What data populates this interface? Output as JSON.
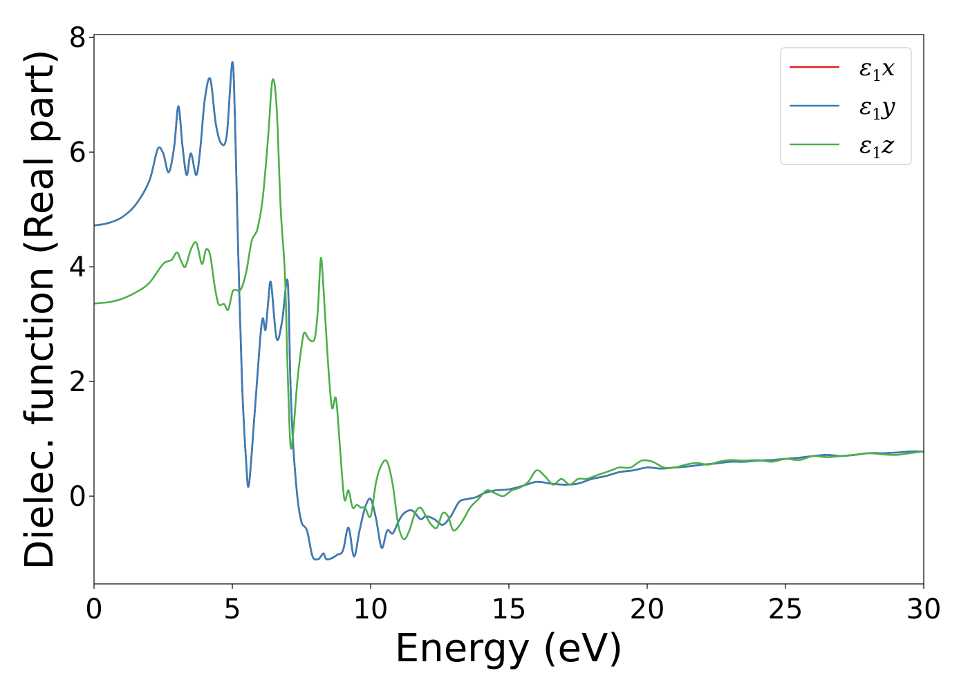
{
  "chart_data": {
    "type": "line",
    "xlabel": "Energy (eV)",
    "ylabel": "Dielec. function (Real part)",
    "xlim": [
      0,
      30
    ],
    "ylim": [
      -1.53,
      8.05
    ],
    "xticks": [
      "0",
      "5",
      "10",
      "15",
      "20",
      "25",
      "30"
    ],
    "yticks": [
      "0",
      "2",
      "4",
      "6",
      "8"
    ],
    "grid": false,
    "legend_position": "top-right",
    "series": [
      {
        "name": "ε₁x",
        "legend": {
          "symbol": "ε",
          "sub": "1",
          "axis": "x"
        },
        "color": "#e41a1c",
        "x": [
          0,
          0.5,
          1,
          1.5,
          2,
          2.3,
          2.5,
          2.7,
          2.9,
          3.05,
          3.2,
          3.35,
          3.5,
          3.7,
          3.85,
          4.0,
          4.2,
          4.4,
          4.6,
          4.8,
          5.0,
          5.1,
          5.2,
          5.35,
          5.5,
          5.6,
          5.8,
          6.0,
          6.1,
          6.2,
          6.3,
          6.4,
          6.6,
          6.8,
          7.0,
          7.1,
          7.2,
          7.35,
          7.5,
          7.7,
          7.9,
          8.1,
          8.2,
          8.3,
          8.4,
          8.6,
          8.8,
          9.0,
          9.2,
          9.4,
          9.6,
          9.8,
          10.0,
          10.2,
          10.4,
          10.6,
          10.8,
          11.0,
          11.2,
          11.5,
          11.8,
          12.0,
          12.3,
          12.6,
          12.9,
          13.2,
          13.5,
          13.8,
          14.1,
          14.5,
          15.0,
          15.5,
          16.0,
          16.5,
          17.0,
          17.5,
          18.0,
          18.5,
          19.0,
          19.5,
          20.0,
          20.5,
          21.0,
          21.5,
          22.0,
          22.5,
          23.0,
          23.5,
          24.0,
          24.5,
          25.0,
          25.5,
          26.0,
          26.5,
          27.0,
          27.5,
          28.0,
          28.5,
          29.0,
          29.5,
          30.0
        ],
        "y": [
          4.72,
          4.76,
          4.86,
          5.08,
          5.5,
          6.05,
          5.98,
          5.65,
          6.1,
          6.8,
          6.1,
          5.6,
          5.98,
          5.6,
          6.1,
          6.9,
          7.28,
          6.5,
          6.15,
          6.3,
          7.57,
          6.5,
          4.5,
          2.0,
          0.6,
          0.2,
          1.4,
          2.7,
          3.1,
          2.9,
          3.4,
          3.72,
          2.75,
          3.05,
          3.75,
          2.0,
          0.9,
          0.0,
          -0.45,
          -0.6,
          -1.05,
          -1.1,
          -1.05,
          -1.0,
          -1.1,
          -1.08,
          -1.02,
          -0.95,
          -0.55,
          -1.05,
          -0.6,
          -0.2,
          -0.05,
          -0.4,
          -0.9,
          -0.6,
          -0.65,
          -0.45,
          -0.3,
          -0.25,
          -0.4,
          -0.35,
          -0.4,
          -0.5,
          -0.35,
          -0.1,
          -0.05,
          -0.02,
          0.05,
          0.1,
          0.12,
          0.18,
          0.25,
          0.22,
          0.2,
          0.22,
          0.3,
          0.35,
          0.42,
          0.45,
          0.5,
          0.48,
          0.5,
          0.52,
          0.55,
          0.57,
          0.6,
          0.6,
          0.62,
          0.63,
          0.65,
          0.67,
          0.7,
          0.72,
          0.7,
          0.72,
          0.75,
          0.75,
          0.76,
          0.78,
          0.78
        ]
      },
      {
        "name": "ε₁y",
        "legend": {
          "symbol": "ε",
          "sub": "1",
          "axis": "y"
        },
        "color": "#377eb8",
        "x": [
          0,
          0.5,
          1,
          1.5,
          2,
          2.3,
          2.5,
          2.7,
          2.9,
          3.05,
          3.2,
          3.35,
          3.5,
          3.7,
          3.85,
          4.0,
          4.2,
          4.4,
          4.6,
          4.8,
          5.0,
          5.1,
          5.2,
          5.35,
          5.5,
          5.6,
          5.8,
          6.0,
          6.1,
          6.2,
          6.3,
          6.4,
          6.6,
          6.8,
          7.0,
          7.1,
          7.2,
          7.35,
          7.5,
          7.7,
          7.9,
          8.1,
          8.2,
          8.3,
          8.4,
          8.6,
          8.8,
          9.0,
          9.2,
          9.4,
          9.6,
          9.8,
          10.0,
          10.2,
          10.4,
          10.6,
          10.8,
          11.0,
          11.2,
          11.5,
          11.8,
          12.0,
          12.3,
          12.6,
          12.9,
          13.2,
          13.5,
          13.8,
          14.1,
          14.5,
          15.0,
          15.5,
          16.0,
          16.5,
          17.0,
          17.5,
          18.0,
          18.5,
          19.0,
          19.5,
          20.0,
          20.5,
          21.0,
          21.5,
          22.0,
          22.5,
          23.0,
          23.5,
          24.0,
          24.5,
          25.0,
          25.5,
          26.0,
          26.5,
          27.0,
          27.5,
          28.0,
          28.5,
          29.0,
          29.5,
          30.0
        ],
        "y": [
          4.72,
          4.76,
          4.86,
          5.08,
          5.5,
          6.05,
          5.98,
          5.65,
          6.1,
          6.8,
          6.1,
          5.6,
          5.98,
          5.6,
          6.1,
          6.9,
          7.28,
          6.5,
          6.15,
          6.3,
          7.57,
          6.5,
          4.5,
          2.0,
          0.6,
          0.2,
          1.4,
          2.7,
          3.1,
          2.9,
          3.4,
          3.72,
          2.75,
          3.05,
          3.75,
          2.0,
          0.9,
          0.0,
          -0.45,
          -0.6,
          -1.05,
          -1.1,
          -1.05,
          -1.0,
          -1.1,
          -1.08,
          -1.02,
          -0.95,
          -0.55,
          -1.05,
          -0.6,
          -0.2,
          -0.05,
          -0.4,
          -0.9,
          -0.6,
          -0.65,
          -0.45,
          -0.3,
          -0.25,
          -0.4,
          -0.35,
          -0.4,
          -0.5,
          -0.35,
          -0.1,
          -0.05,
          -0.02,
          0.05,
          0.1,
          0.12,
          0.18,
          0.25,
          0.22,
          0.2,
          0.22,
          0.3,
          0.35,
          0.42,
          0.45,
          0.5,
          0.48,
          0.5,
          0.52,
          0.55,
          0.57,
          0.6,
          0.6,
          0.62,
          0.63,
          0.65,
          0.67,
          0.7,
          0.72,
          0.7,
          0.72,
          0.75,
          0.75,
          0.76,
          0.78,
          0.78
        ]
      },
      {
        "name": "ε₁z",
        "legend": {
          "symbol": "ε",
          "sub": "1",
          "axis": "z"
        },
        "color": "#4daf4a",
        "x": [
          0,
          0.5,
          1,
          1.5,
          2,
          2.5,
          2.8,
          3.0,
          3.15,
          3.3,
          3.5,
          3.7,
          3.9,
          4.05,
          4.2,
          4.35,
          4.5,
          4.7,
          4.85,
          5.0,
          5.1,
          5.3,
          5.5,
          5.7,
          5.9,
          6.1,
          6.3,
          6.45,
          6.6,
          6.75,
          6.9,
          7.0,
          7.1,
          7.2,
          7.35,
          7.5,
          7.6,
          7.75,
          7.9,
          8.0,
          8.1,
          8.2,
          8.3,
          8.45,
          8.6,
          8.75,
          8.9,
          9.05,
          9.2,
          9.35,
          9.5,
          9.65,
          9.8,
          10.0,
          10.2,
          10.4,
          10.6,
          10.8,
          11.0,
          11.2,
          11.4,
          11.6,
          11.8,
          12.0,
          12.2,
          12.4,
          12.6,
          12.8,
          13.0,
          13.3,
          13.6,
          13.9,
          14.2,
          14.5,
          14.8,
          15.1,
          15.4,
          15.7,
          16.0,
          16.3,
          16.6,
          16.9,
          17.2,
          17.5,
          17.8,
          18.1,
          18.4,
          18.7,
          19.0,
          19.4,
          19.8,
          20.2,
          20.6,
          21.0,
          21.4,
          21.8,
          22.2,
          22.6,
          23.0,
          23.5,
          24.0,
          24.5,
          25.0,
          25.5,
          26.0,
          26.5,
          27.0,
          27.5,
          28.0,
          28.5,
          29.0,
          29.5,
          30.0
        ],
        "y": [
          3.36,
          3.38,
          3.44,
          3.55,
          3.72,
          4.05,
          4.12,
          4.25,
          4.1,
          4.0,
          4.3,
          4.42,
          4.05,
          4.3,
          4.2,
          3.7,
          3.35,
          3.35,
          3.25,
          3.55,
          3.6,
          3.6,
          3.9,
          4.45,
          4.65,
          5.2,
          6.3,
          7.25,
          6.8,
          5.0,
          3.9,
          2.2,
          0.9,
          1.1,
          2.0,
          2.6,
          2.85,
          2.75,
          2.7,
          2.8,
          3.3,
          4.15,
          3.6,
          2.4,
          1.55,
          1.7,
          0.8,
          -0.05,
          0.1,
          -0.2,
          -0.15,
          -0.2,
          -0.2,
          -0.35,
          0.25,
          0.55,
          0.6,
          0.2,
          -0.5,
          -0.75,
          -0.6,
          -0.3,
          -0.2,
          -0.35,
          -0.5,
          -0.55,
          -0.3,
          -0.35,
          -0.6,
          -0.45,
          -0.2,
          -0.05,
          0.1,
          0.05,
          0.0,
          0.1,
          0.15,
          0.25,
          0.45,
          0.35,
          0.2,
          0.3,
          0.2,
          0.3,
          0.3,
          0.35,
          0.4,
          0.45,
          0.5,
          0.5,
          0.62,
          0.6,
          0.5,
          0.5,
          0.55,
          0.58,
          0.55,
          0.6,
          0.63,
          0.62,
          0.63,
          0.6,
          0.65,
          0.63,
          0.7,
          0.68,
          0.7,
          0.72,
          0.75,
          0.73,
          0.72,
          0.75,
          0.78
        ]
      }
    ]
  }
}
